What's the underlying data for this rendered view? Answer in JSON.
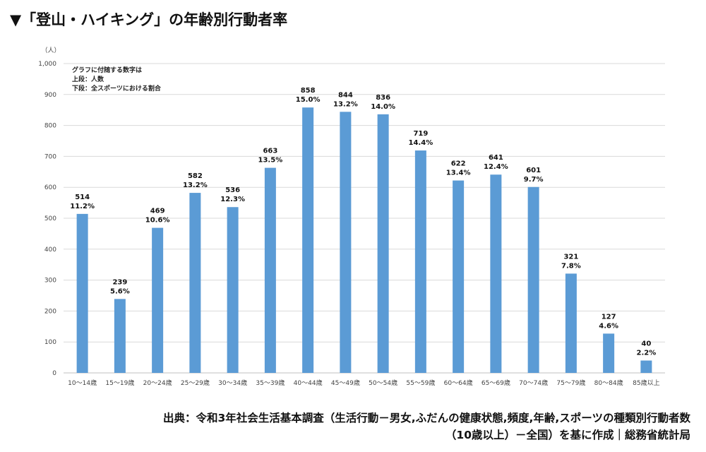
{
  "title": "▼「登山・ハイキング」の年齢別行動者率",
  "source": {
    "line1": "出典：令和3年社会生活基本調査（生活行動－男女,ふだんの健康状態,頻度,年齢,スポーツの種類別行動者数",
    "line2": "（10歳以上）－全国）を基に作成｜総務省統計局"
  },
  "colors": {
    "bar": "#5b9bd5",
    "grid": "#d9d9d9"
  },
  "chart_data": {
    "type": "bar",
    "unit_label": "（人）",
    "categories": [
      "10～14歳",
      "15～19歳",
      "20～24歳",
      "25～29歳",
      "30～34歳",
      "35～39歳",
      "40～44歳",
      "45～49歳",
      "50～54歳",
      "55～59歳",
      "60～64歳",
      "65～69歳",
      "70～74歳",
      "75～79歳",
      "80～84歳",
      "85歳以上"
    ],
    "values": [
      514,
      239,
      469,
      582,
      536,
      663,
      858,
      844,
      836,
      719,
      622,
      641,
      601,
      321,
      127,
      40
    ],
    "percentages": [
      "11.2%",
      "5.6%",
      "10.6%",
      "13.2%",
      "12.3%",
      "13.5%",
      "15.0%",
      "13.2%",
      "14.0%",
      "14.4%",
      "13.4%",
      "12.4%",
      "9.7%",
      "7.8%",
      "4.6%",
      "2.2%"
    ],
    "ylim": [
      0,
      1000
    ],
    "yticks": [
      0,
      100,
      200,
      300,
      400,
      500,
      600,
      700,
      800,
      900,
      1000
    ],
    "ytick_labels": [
      "0",
      "100",
      "200",
      "300",
      "400",
      "500",
      "600",
      "700",
      "800",
      "900",
      "1,000"
    ],
    "notes": [
      "グラフに付随する数字は",
      "上段：人数",
      "下段：全スポーツにおける割合"
    ],
    "grid": true
  }
}
